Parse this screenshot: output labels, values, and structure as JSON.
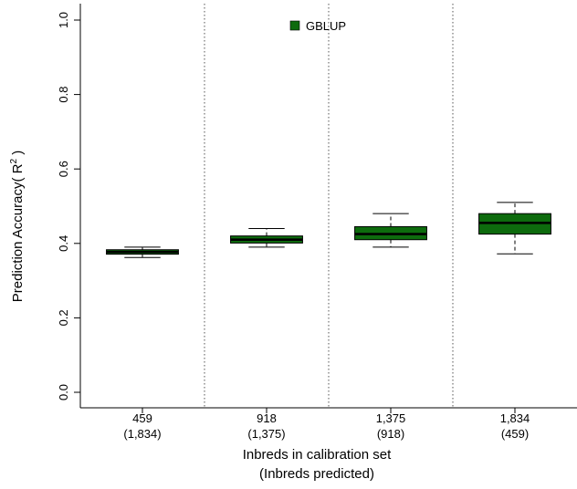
{
  "chart_data": {
    "type": "box",
    "title": "",
    "legend": {
      "position": "top-center",
      "entries": [
        {
          "label": "GBLUP",
          "color": "#0d6b0d"
        }
      ]
    },
    "ylabel": "Prediction Accuracy( R",
    "ylabel_superscript": "2",
    "ylabel_suffix": " )",
    "xlabel_line1": "Inbreds in calibration set",
    "xlabel_line2": "(Inbreds predicted)",
    "ylim": [
      0.0,
      1.0
    ],
    "yticks": [
      {
        "value": 0.0,
        "label": "0.0"
      },
      {
        "value": 0.2,
        "label": "0.2"
      },
      {
        "value": 0.4,
        "label": "0.4"
      },
      {
        "value": 0.6,
        "label": "0.6"
      },
      {
        "value": 0.8,
        "label": "0.8"
      },
      {
        "value": 1.0,
        "label": "1.0"
      }
    ],
    "categories": [
      {
        "line1": "459",
        "line2": "(1,834)"
      },
      {
        "line1": "918",
        "line2": "(1,375)"
      },
      {
        "line1": "1,375",
        "line2": "(918)"
      },
      {
        "line1": "1,834",
        "line2": "(459)"
      }
    ],
    "series": [
      {
        "name": "GBLUP",
        "color": "#0d6b0d",
        "boxes": [
          {
            "min": 0.362,
            "q1": 0.371,
            "median": 0.377,
            "q3": 0.383,
            "max": 0.39
          },
          {
            "min": 0.39,
            "q1": 0.401,
            "median": 0.41,
            "q3": 0.42,
            "max": 0.44
          },
          {
            "min": 0.39,
            "q1": 0.41,
            "median": 0.425,
            "q3": 0.445,
            "max": 0.48
          },
          {
            "min": 0.372,
            "q1": 0.425,
            "median": 0.455,
            "q3": 0.48,
            "max": 0.51
          }
        ]
      }
    ],
    "grid": false,
    "separators": "dotted vertical lines between groups",
    "colors": {
      "box_fill": "#0d6b0d",
      "axis": "#000000",
      "separator": "#555555"
    }
  }
}
